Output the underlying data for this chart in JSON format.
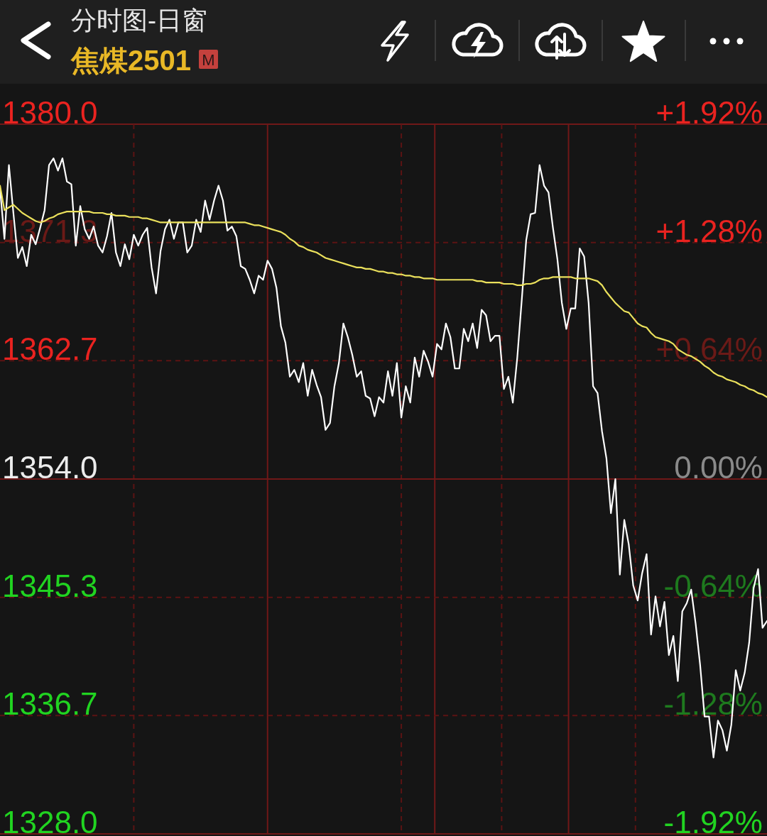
{
  "chart_data": {
    "type": "line",
    "title": "分时图-日窗",
    "subtitle": "焦煤2501",
    "annotations": [
      "M"
    ],
    "categories": [
      null,
      null,
      null,
      null,
      null,
      null,
      null,
      null,
      null,
      null,
      null,
      null,
      null,
      null,
      null,
      null,
      null,
      null,
      null,
      null,
      null,
      null,
      null,
      null,
      null,
      null,
      null,
      null,
      null,
      null,
      null,
      null,
      null,
      null,
      null,
      null,
      null,
      null,
      null,
      null,
      null,
      null,
      null,
      null,
      null,
      null,
      null,
      null,
      null,
      null,
      null,
      null,
      null,
      null,
      null,
      null,
      null,
      null,
      null,
      null,
      null,
      null,
      null,
      null,
      null,
      null,
      null,
      null,
      null,
      null,
      null,
      null,
      null,
      null,
      null,
      null,
      null,
      null,
      null,
      null,
      null,
      null,
      null,
      null,
      null,
      null,
      null,
      null,
      null,
      null,
      null,
      null,
      null,
      null,
      null,
      null,
      null,
      null,
      null,
      null,
      null,
      null,
      null,
      null,
      null,
      null,
      null,
      null,
      null,
      null,
      null,
      null,
      null,
      null,
      null,
      null,
      null,
      null,
      null,
      null,
      null,
      null,
      null,
      null,
      null,
      null,
      null,
      null,
      null,
      null,
      null,
      null,
      null,
      null,
      null,
      null,
      null,
      null,
      null,
      null,
      null,
      null,
      null,
      null,
      null,
      null,
      null,
      null,
      null,
      null,
      null,
      null,
      null,
      null,
      null,
      null,
      null,
      null,
      null,
      null,
      null,
      null,
      null,
      null,
      null,
      null,
      null,
      null,
      null,
      null,
      null,
      null,
      null
    ],
    "ylim": [
      1328.0,
      1380.0
    ],
    "yticks": [
      {
        "value": 1380.0,
        "label": "1380.0"
      },
      {
        "value": 1371.33,
        "label": "1371.3"
      },
      {
        "value": 1362.67,
        "label": "1362.7"
      },
      {
        "value": 1354.0,
        "label": "1354.0"
      },
      {
        "value": 1345.33,
        "label": "1345.3"
      },
      {
        "value": 1336.67,
        "label": "1336.7"
      },
      {
        "value": 1328.0,
        "label": "1328.0"
      }
    ],
    "y2lim": [
      -1.92,
      1.92
    ],
    "y2ticks": [
      {
        "value": 1.92,
        "label": "+1.92%"
      },
      {
        "value": 1.28,
        "label": "+1.28%"
      },
      {
        "value": 0.64,
        "label": "+0.64%"
      },
      {
        "value": 0,
        "label": "0.00%"
      },
      {
        "value": -0.64,
        "label": "-0.64%"
      },
      {
        "value": -1.28,
        "label": "-1.28%"
      },
      {
        "value": -1.92,
        "label": "-1.92%"
      }
    ],
    "grid": true,
    "series": [
      {
        "color": "#ffffff",
        "values": [
          1375.3,
          1371.6,
          1377.0,
          1373.5,
          1370.2,
          1371.0,
          1369.6,
          1371.9,
          1371.2,
          1372.4,
          1373.7,
          1377.0,
          1377.5,
          1376.6,
          1377.5,
          1375.8,
          1375.6,
          1371.1,
          1374.0,
          1372.3,
          1371.6,
          1372.5,
          1371.1,
          1370.6,
          1371.8,
          1373.5,
          1370.6,
          1369.6,
          1371.2,
          1370.1,
          1371.9,
          1371.1,
          1371.9,
          1372.4,
          1369.5,
          1367.6,
          1370.7,
          1372.3,
          1373.0,
          1371.6,
          1372.8,
          1372.8,
          1370.6,
          1371.1,
          1373.0,
          1372.1,
          1374.4,
          1373.0,
          1374.4,
          1375.5,
          1374.4,
          1372.2,
          1372.5,
          1371.8,
          1369.6,
          1369.4,
          1368.6,
          1367.6,
          1368.9,
          1368.6,
          1370.0,
          1369.4,
          1368.0,
          1365.2,
          1364.0,
          1361.5,
          1362.0,
          1361.1,
          1362.5,
          1360.1,
          1362.0,
          1360.9,
          1360.0,
          1357.6,
          1358.1,
          1360.8,
          1362.5,
          1365.4,
          1364.4,
          1363.1,
          1361.5,
          1361.9,
          1360.1,
          1359.9,
          1358.6,
          1360.0,
          1359.6,
          1361.9,
          1360.1,
          1362.5,
          1358.5,
          1360.8,
          1359.6,
          1362.9,
          1361.5,
          1363.4,
          1362.6,
          1361.5,
          1363.9,
          1363.5,
          1365.4,
          1364.4,
          1362.1,
          1362.1,
          1365.0,
          1364.1,
          1365.4,
          1363.6,
          1366.4,
          1366.0,
          1364.1,
          1364.5,
          1364.5,
          1360.6,
          1361.5,
          1359.6,
          1362.9,
          1367.1,
          1371.5,
          1373.4,
          1373.5,
          1377.0,
          1375.5,
          1375.0,
          1372.4,
          1370.1,
          1366.9,
          1365.0,
          1366.5,
          1366.5,
          1370.9,
          1370.3,
          1366.9,
          1360.8,
          1360.3,
          1357.5,
          1355.5,
          1351.5,
          1354.0,
          1347.0,
          1351.0,
          1349.2,
          1346.2,
          1345.1,
          1347.1,
          1348.5,
          1342.6,
          1345.4,
          1343.2,
          1345.0,
          1341.1,
          1342.5,
          1339.2,
          1344.3,
          1344.9,
          1345.9,
          1343.4,
          1340.4,
          1336.6,
          1336.6,
          1333.6,
          1336.3,
          1335.6,
          1334.1,
          1336.0,
          1340.0,
          1338.5,
          1339.8,
          1342.0,
          1346.0,
          1347.4,
          1343.1,
          1343.6
        ]
      },
      {
        "color": "#ebe15c",
        "values": [
          1375.5,
          1373.7,
          1373.9,
          1374.1,
          1373.8,
          1373.5,
          1373.3,
          1373.1,
          1372.9,
          1372.8,
          1372.9,
          1373.1,
          1373.2,
          1373.4,
          1373.5,
          1373.6,
          1373.6,
          1373.6,
          1373.6,
          1373.6,
          1373.6,
          1373.5,
          1373.5,
          1373.5,
          1373.4,
          1373.4,
          1373.3,
          1373.3,
          1373.3,
          1373.2,
          1373.2,
          1373.2,
          1373.1,
          1373.1,
          1373.0,
          1372.9,
          1372.8,
          1372.8,
          1372.8,
          1372.8,
          1372.8,
          1372.8,
          1372.8,
          1372.8,
          1372.8,
          1372.8,
          1372.8,
          1372.8,
          1372.8,
          1372.8,
          1372.8,
          1372.8,
          1372.8,
          1372.8,
          1372.8,
          1372.8,
          1372.7,
          1372.6,
          1372.6,
          1372.5,
          1372.4,
          1372.3,
          1372.2,
          1372.1,
          1371.9,
          1371.6,
          1371.4,
          1371.1,
          1371.0,
          1370.8,
          1370.7,
          1370.6,
          1370.4,
          1370.2,
          1370.1,
          1370.0,
          1369.9,
          1369.8,
          1369.7,
          1369.6,
          1369.5,
          1369.5,
          1369.4,
          1369.4,
          1369.3,
          1369.2,
          1369.2,
          1369.1,
          1369.1,
          1369.0,
          1369.0,
          1368.9,
          1368.9,
          1368.8,
          1368.8,
          1368.7,
          1368.7,
          1368.7,
          1368.6,
          1368.6,
          1368.6,
          1368.6,
          1368.6,
          1368.6,
          1368.6,
          1368.6,
          1368.6,
          1368.5,
          1368.5,
          1368.4,
          1368.4,
          1368.4,
          1368.4,
          1368.3,
          1368.3,
          1368.3,
          1368.2,
          1368.2,
          1368.3,
          1368.3,
          1368.4,
          1368.6,
          1368.7,
          1368.7,
          1368.8,
          1368.8,
          1368.8,
          1368.8,
          1368.8,
          1368.7,
          1368.7,
          1368.7,
          1368.7,
          1368.6,
          1368.5,
          1368.2,
          1367.7,
          1367.3,
          1366.9,
          1366.6,
          1366.3,
          1366.2,
          1365.8,
          1365.4,
          1365.2,
          1365.1,
          1364.7,
          1364.4,
          1364.3,
          1364.2,
          1364.1,
          1363.9,
          1363.5,
          1363.3,
          1363.1,
          1363.0,
          1362.8,
          1362.6,
          1362.3,
          1362.1,
          1361.8,
          1361.6,
          1361.5,
          1361.3,
          1361.2,
          1361.1,
          1360.9,
          1360.8,
          1360.6,
          1360.5,
          1360.3,
          1360.2,
          1360.0
        ]
      }
    ]
  }
}
